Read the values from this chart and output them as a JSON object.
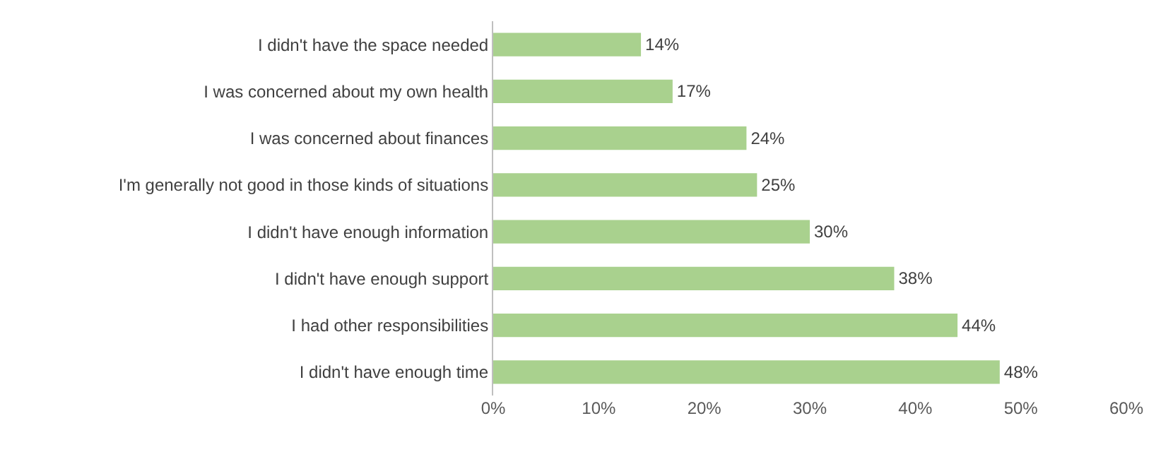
{
  "chart_data": {
    "type": "bar",
    "orientation": "horizontal",
    "categories": [
      "I didn't have the space needed",
      "I was concerned about my own health",
      "I was concerned about finances",
      "I'm generally not good in those kinds of situations",
      "I didn't have enough information",
      "I didn't have enough support",
      "I had other responsibilities",
      "I didn't have enough time"
    ],
    "values": [
      14,
      17,
      24,
      25,
      30,
      38,
      44,
      48
    ],
    "value_labels": [
      "14%",
      "17%",
      "24%",
      "25%",
      "30%",
      "38%",
      "44%",
      "48%"
    ],
    "color": "#a9d18e",
    "xlim": [
      0,
      60
    ],
    "xticks": [
      {
        "value": 0,
        "label": "0%"
      },
      {
        "value": 10,
        "label": "10%"
      },
      {
        "value": 20,
        "label": "20%"
      },
      {
        "value": 30,
        "label": "30%"
      },
      {
        "value": 40,
        "label": "40%"
      },
      {
        "value": 50,
        "label": "50%"
      },
      {
        "value": 60,
        "label": "60%"
      }
    ],
    "grid": false,
    "legend": false
  }
}
